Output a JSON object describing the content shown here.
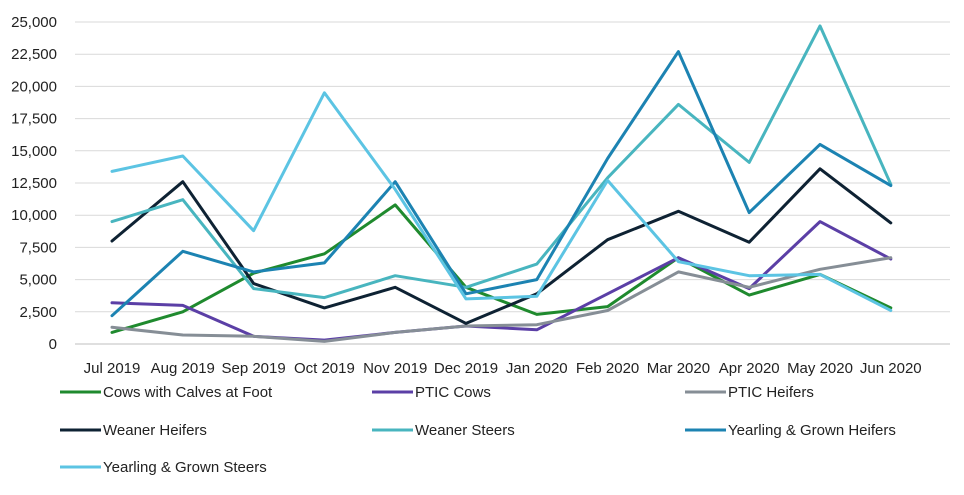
{
  "chart_data": {
    "type": "line",
    "title": "",
    "xlabel": "",
    "ylabel": "",
    "ylim": [
      0,
      25000
    ],
    "yticks": [
      0,
      2500,
      5000,
      7500,
      10000,
      12500,
      15000,
      17500,
      20000,
      22500,
      25000
    ],
    "ytick_labels": [
      "0",
      "2,500",
      "5,000",
      "7,500",
      "10,000",
      "12,500",
      "15,000",
      "17,500",
      "20,000",
      "22,500",
      "25,000"
    ],
    "grid": "horizontal",
    "legend_position": "bottom",
    "categories": [
      "Jul 2019",
      "Aug 2019",
      "Sep 2019",
      "Oct 2019",
      "Nov 2019",
      "Dec 2019",
      "Jan 2020",
      "Feb 2020",
      "Mar 2020",
      "Apr 2020",
      "May 2020",
      "Jun 2020"
    ],
    "series": [
      {
        "name": "Cows with Calves at Foot",
        "color": "#1f8a2e",
        "values": [
          900,
          2500,
          5500,
          7000,
          10800,
          4400,
          2300,
          2900,
          6700,
          3800,
          5400,
          2800
        ]
      },
      {
        "name": "PTIC Cows",
        "color": "#5b3fa6",
        "values": [
          3200,
          3000,
          600,
          300,
          900,
          1400,
          1100,
          3900,
          6700,
          4300,
          9500,
          6600
        ]
      },
      {
        "name": "PTIC Heifers",
        "color": "#868e96",
        "values": [
          1300,
          700,
          600,
          200,
          900,
          1400,
          1500,
          2600,
          5600,
          4400,
          5800,
          6700
        ]
      },
      {
        "name": "Weaner Heifers",
        "color": "#0e2233",
        "values": [
          8000,
          12600,
          4700,
          2800,
          4400,
          1600,
          3900,
          8100,
          10300,
          7900,
          13600,
          9400
        ]
      },
      {
        "name": "Weaner Steers",
        "color": "#48b5bf",
        "values": [
          9500,
          11200,
          4300,
          3600,
          5300,
          4400,
          6200,
          12900,
          18600,
          14100,
          24700,
          12400
        ]
      },
      {
        "name": "Yearling & Grown Heifers",
        "color": "#1c83b2",
        "values": [
          2200,
          7200,
          5600,
          6300,
          12600,
          3900,
          5000,
          14400,
          22700,
          10200,
          15500,
          12300
        ]
      },
      {
        "name": "Yearling & Grown Steers",
        "color": "#5cc4e3",
        "values": [
          13400,
          14600,
          8800,
          19500,
          12000,
          3500,
          3700,
          12700,
          6400,
          5300,
          5400,
          2600
        ]
      }
    ]
  }
}
